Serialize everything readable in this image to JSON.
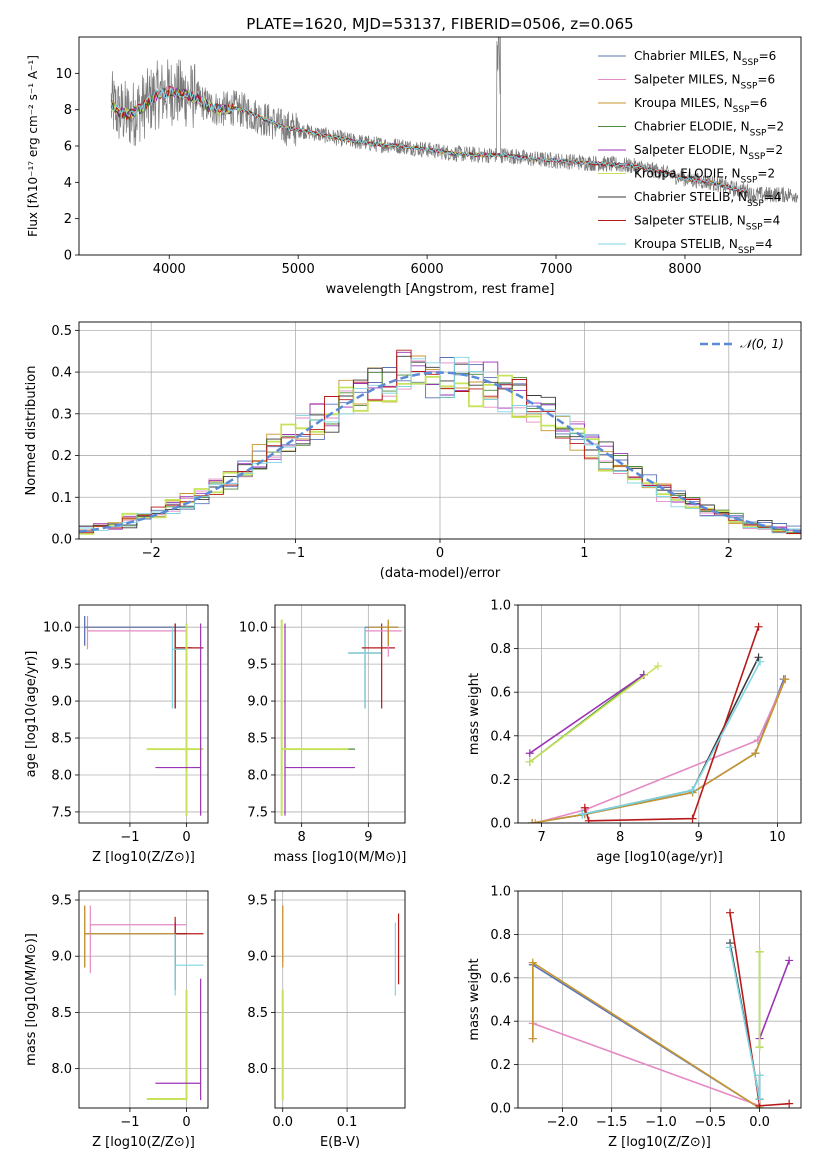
{
  "figure": {
    "title": "PLATE=1620, MJD=53137, FIBERID=0506, z=0.065"
  },
  "models": [
    {
      "name": "Chabrier MILES",
      "nssp": "6",
      "color": "#5b74b8"
    },
    {
      "name": "Salpeter MILES",
      "nssp": "6",
      "color": "#e58ac4"
    },
    {
      "name": "Kroupa MILES",
      "nssp": "6",
      "color": "#c8962e"
    },
    {
      "name": "Chabrier ELODIE",
      "nssp": "2",
      "color": "#4c8a3c"
    },
    {
      "name": "Salpeter ELODIE",
      "nssp": "2",
      "color": "#9b33b5"
    },
    {
      "name": "Kroupa ELODIE",
      "nssp": "2",
      "color": "#c7e35c"
    },
    {
      "name": "Chabrier STELIB",
      "nssp": "4",
      "color": "#3a3a3a"
    },
    {
      "name": "Salpeter STELIB",
      "nssp": "4",
      "color": "#b81a1a"
    },
    {
      "name": "Kroupa STELIB",
      "nssp": "4",
      "color": "#7fd6e3"
    }
  ],
  "chart_data": [
    {
      "id": "spectrum",
      "type": "line",
      "title": "PLATE=1620, MJD=53137, FIBERID=0506, z=0.065",
      "xlabel": "wavelength [Angstrom, rest frame]",
      "ylabel": "Flux [fλ10⁻¹⁷ erg cm⁻² s⁻¹ A⁻¹]",
      "xlim": [
        3300,
        8900
      ],
      "ylim": [
        0,
        12
      ],
      "xticks": [
        4000,
        5000,
        6000,
        7000,
        8000
      ],
      "yticks": [
        0,
        2,
        4,
        6,
        8,
        10
      ],
      "grid": false,
      "legend": "top-right",
      "continuum_x": [
        3550,
        3600,
        3700,
        3800,
        3900,
        4000,
        4100,
        4200,
        4300,
        4400,
        4500,
        4600,
        4700,
        4800,
        4900,
        5000,
        5200,
        5400,
        5600,
        5800,
        6000,
        6200,
        6400,
        6600,
        6800,
        7000,
        7200,
        7400,
        7600,
        7800,
        8000,
        8200,
        8400,
        8500
      ],
      "continuum_y": [
        8.3,
        7.9,
        7.7,
        8.2,
        8.8,
        9.0,
        8.9,
        8.7,
        8.2,
        8.0,
        8.1,
        7.9,
        7.6,
        7.3,
        7.0,
        6.9,
        6.6,
        6.3,
        6.1,
        6.0,
        5.8,
        5.6,
        5.5,
        5.5,
        5.3,
        5.2,
        5.1,
        5.0,
        4.9,
        4.6,
        4.2,
        4.0,
        3.6,
        3.5
      ]
    },
    {
      "id": "residuals",
      "type": "line",
      "xlabel": "(data-model)/error",
      "ylabel": "Normed distribution",
      "xlim": [
        -2.5,
        2.5
      ],
      "ylim": [
        0,
        0.52
      ],
      "xticks": [
        -2,
        -1,
        0,
        1,
        2
      ],
      "yticks": [
        0.0,
        0.1,
        0.2,
        0.3,
        0.4,
        0.5
      ],
      "grid": true,
      "legend": "top-right",
      "legend_entry": "𝒩(0, 1)",
      "gaussian": {
        "mean": 0,
        "sigma": 1,
        "color": "#5b8bd6"
      }
    },
    {
      "id": "age-vs-Z",
      "type": "scatter",
      "xlabel": "Z [log10(Z/Z⊙)]",
      "ylabel": "age  [log10(age/yr)]",
      "xlim": [
        -1.9,
        0.38
      ],
      "ylim": [
        7.35,
        10.3
      ],
      "xticks": [
        -1,
        0
      ],
      "yticks": [
        7.5,
        8.0,
        8.5,
        9.0,
        9.5,
        10.0
      ],
      "grid": true
    },
    {
      "id": "age-vs-mass",
      "type": "scatter",
      "xlabel": "mass [log10(M/M⊙)]",
      "xlim": [
        7.6,
        9.55
      ],
      "ylim": [
        7.35,
        10.3
      ],
      "xticks": [
        8,
        9
      ],
      "yticks": [
        7.5,
        8.0,
        8.5,
        9.0,
        9.5,
        10.0
      ],
      "grid": true
    },
    {
      "id": "weight-vs-age",
      "type": "line",
      "xlabel": "age  [log10(age/yr)]",
      "ylabel": "mass weight",
      "xlim": [
        6.7,
        10.3
      ],
      "ylim": [
        0,
        1.0
      ],
      "xticks": [
        7,
        8,
        9,
        10
      ],
      "yticks": [
        0.0,
        0.2,
        0.4,
        0.6,
        0.8,
        1.0
      ],
      "grid": true,
      "series": [
        {
          "name": "Chabrier MILES",
          "x": [
            6.88,
            7.55,
            8.92,
            9.72,
            10.08
          ],
          "y": [
            0.0,
            0.04,
            0.14,
            0.32,
            0.66
          ]
        },
        {
          "name": "Salpeter MILES",
          "x": [
            6.92,
            7.55,
            9.75,
            10.1
          ],
          "y": [
            0.0,
            0.06,
            0.38,
            0.66
          ]
        },
        {
          "name": "Kroupa MILES",
          "x": [
            6.88,
            7.55,
            8.92,
            9.72,
            10.1
          ],
          "y": [
            0.0,
            0.04,
            0.14,
            0.32,
            0.66
          ]
        },
        {
          "name": "Chabrier ELODIE",
          "x": [
            6.85,
            8.3
          ],
          "y": [
            0.28,
            0.68
          ]
        },
        {
          "name": "Salpeter ELODIE",
          "x": [
            6.85,
            8.3
          ],
          "y": [
            0.32,
            0.68
          ]
        },
        {
          "name": "Kroupa ELODIE",
          "x": [
            6.85,
            8.48
          ],
          "y": [
            0.28,
            0.72
          ]
        },
        {
          "name": "Chabrier STELIB",
          "x": [
            7.52,
            8.92,
            9.76
          ],
          "y": [
            0.04,
            0.15,
            0.76
          ]
        },
        {
          "name": "Salpeter STELIB",
          "x": [
            7.55,
            7.6,
            8.92,
            9.76
          ],
          "y": [
            0.07,
            0.01,
            0.02,
            0.9
          ]
        },
        {
          "name": "Kroupa STELIB",
          "x": [
            7.52,
            8.92,
            9.78
          ],
          "y": [
            0.04,
            0.15,
            0.74
          ]
        }
      ]
    },
    {
      "id": "mass-vs-Z",
      "type": "scatter",
      "xlabel": "Z [log10(Z/Z⊙)]",
      "ylabel": "mass [log10(M/M⊙)]",
      "xlim": [
        -1.9,
        0.38
      ],
      "ylim": [
        7.65,
        9.58
      ],
      "xticks": [
        -1,
        0
      ],
      "yticks": [
        8.0,
        8.5,
        9.0,
        9.5
      ],
      "grid": true
    },
    {
      "id": "mass-vs-EBV",
      "type": "scatter",
      "xlabel": "E(B-V)",
      "xlim": [
        -0.012,
        0.19
      ],
      "ylim": [
        7.65,
        9.58
      ],
      "xticks": [
        0.0,
        0.1
      ],
      "yticks": [
        8.0,
        8.5,
        9.0,
        9.5
      ],
      "grid": true
    },
    {
      "id": "weight-vs-Z",
      "type": "line",
      "xlabel": "Z [log10(Z/Z⊙)]",
      "ylabel": "mass weight",
      "xlim": [
        -2.45,
        0.42
      ],
      "ylim": [
        0,
        1.0
      ],
      "xticks": [
        -2.0,
        -1.5,
        -1.0,
        -0.5,
        0.0
      ],
      "yticks": [
        0.0,
        0.2,
        0.4,
        0.6,
        0.8,
        1.0
      ],
      "grid": true,
      "series": [
        {
          "name": "Chabrier MILES",
          "x": [
            -2.3,
            -2.3,
            0.0,
            0.0
          ],
          "y": [
            0.32,
            0.66,
            0.0,
            0.04
          ]
        },
        {
          "name": "Salpeter MILES",
          "x": [
            -2.3,
            0.0
          ],
          "y": [
            0.39,
            0.01
          ]
        },
        {
          "name": "Kroupa MILES",
          "x": [
            -2.3,
            -2.3,
            0.0,
            0.0
          ],
          "y": [
            0.32,
            0.67,
            0.0,
            0.04
          ]
        },
        {
          "name": "Chabrier ELODIE",
          "x": [
            0.0,
            0.0
          ],
          "y": [
            0.28,
            0.72
          ]
        },
        {
          "name": "Salpeter ELODIE",
          "x": [
            0.0,
            0.3
          ],
          "y": [
            0.32,
            0.68
          ]
        },
        {
          "name": "Kroupa ELODIE",
          "x": [
            0.0,
            0.0
          ],
          "y": [
            0.28,
            0.72
          ]
        },
        {
          "name": "Chabrier STELIB",
          "x": [
            -0.3,
            0.0,
            0.0
          ],
          "y": [
            0.76,
            0.04,
            0.15
          ]
        },
        {
          "name": "Salpeter STELIB",
          "x": [
            -0.3,
            0.0,
            0.3
          ],
          "y": [
            0.9,
            0.01,
            0.02
          ]
        },
        {
          "name": "Kroupa STELIB",
          "x": [
            -0.3,
            0.0,
            0.0
          ],
          "y": [
            0.74,
            0.04,
            0.15
          ]
        }
      ]
    }
  ]
}
